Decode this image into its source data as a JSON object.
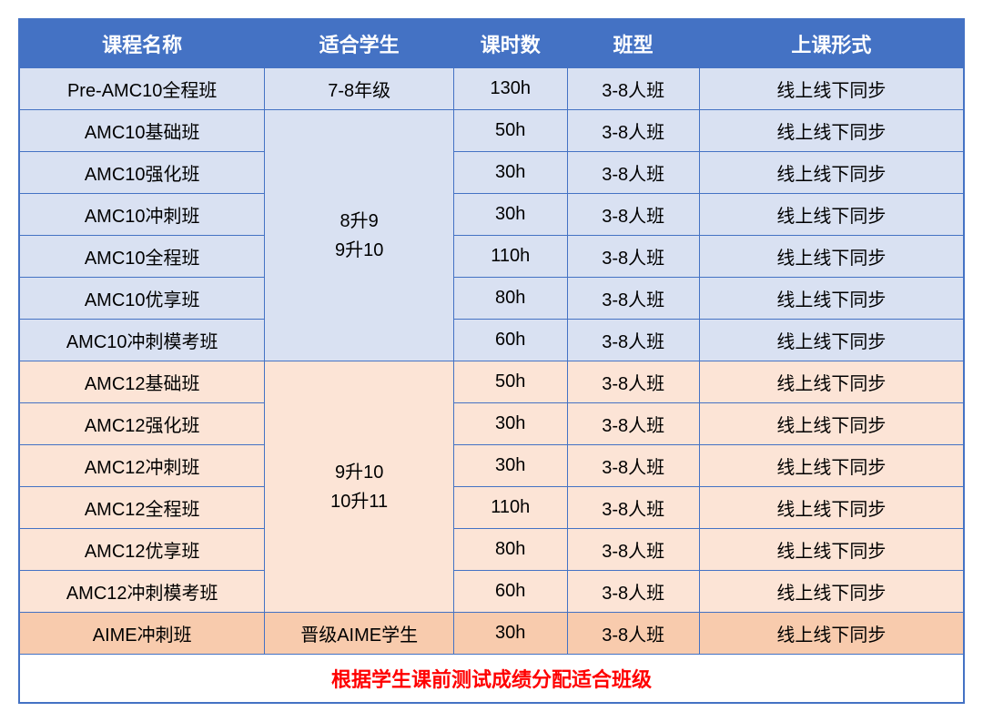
{
  "table": {
    "headers": {
      "course": "课程名称",
      "student": "适合学生",
      "hours": "课时数",
      "classType": "班型",
      "mode": "上课形式"
    },
    "section1": {
      "bgColor": "#d9e1f2",
      "rows": [
        {
          "course": "Pre-AMC10全程班",
          "student": "7-8年级",
          "hours": "130h",
          "classType": "3-8人班",
          "mode": "线上线下同步"
        }
      ]
    },
    "section2": {
      "bgColor": "#d9e1f2",
      "studentLine1": "8升9",
      "studentLine2": "9升10",
      "rows": [
        {
          "course": "AMC10基础班",
          "hours": "50h",
          "classType": "3-8人班",
          "mode": "线上线下同步"
        },
        {
          "course": "AMC10强化班",
          "hours": "30h",
          "classType": "3-8人班",
          "mode": "线上线下同步"
        },
        {
          "course": "AMC10冲刺班",
          "hours": "30h",
          "classType": "3-8人班",
          "mode": "线上线下同步"
        },
        {
          "course": "AMC10全程班",
          "hours": "110h",
          "classType": "3-8人班",
          "mode": "线上线下同步"
        },
        {
          "course": "AMC10优享班",
          "hours": "80h",
          "classType": "3-8人班",
          "mode": "线上线下同步"
        },
        {
          "course": "AMC10冲刺模考班",
          "hours": "60h",
          "classType": "3-8人班",
          "mode": "线上线下同步"
        }
      ]
    },
    "section3": {
      "bgColor": "#fce4d6",
      "studentLine1": "9升10",
      "studentLine2": "10升11",
      "rows": [
        {
          "course": "AMC12基础班",
          "hours": "50h",
          "classType": "3-8人班",
          "mode": "线上线下同步"
        },
        {
          "course": "AMC12强化班",
          "hours": "30h",
          "classType": "3-8人班",
          "mode": "线上线下同步"
        },
        {
          "course": "AMC12冲刺班",
          "hours": "30h",
          "classType": "3-8人班",
          "mode": "线上线下同步"
        },
        {
          "course": "AMC12全程班",
          "hours": "110h",
          "classType": "3-8人班",
          "mode": "线上线下同步"
        },
        {
          "course": "AMC12优享班",
          "hours": "80h",
          "classType": "3-8人班",
          "mode": "线上线下同步"
        },
        {
          "course": "AMC12冲刺模考班",
          "hours": "60h",
          "classType": "3-8人班",
          "mode": "线上线下同步"
        }
      ]
    },
    "section4": {
      "bgColor": "#f8cbad",
      "rows": [
        {
          "course": "AIME冲刺班",
          "student": "晋级AIME学生",
          "hours": "30h",
          "classType": "3-8人班",
          "mode": "线上线下同步"
        }
      ]
    },
    "footer": "根据学生课前测试成绩分配适合班级"
  },
  "style": {
    "headerBg": "#4472c4",
    "headerText": "#ffffff",
    "borderColor": "#4472c4",
    "footerTextColor": "#ff0000",
    "fontFamily": "Microsoft YaHei",
    "headerFontSize": 22,
    "cellFontSize": 20,
    "columnWidths": {
      "course": "26%",
      "student": "20%",
      "hours": "12%",
      "classType": "14%",
      "mode": "28%"
    }
  }
}
